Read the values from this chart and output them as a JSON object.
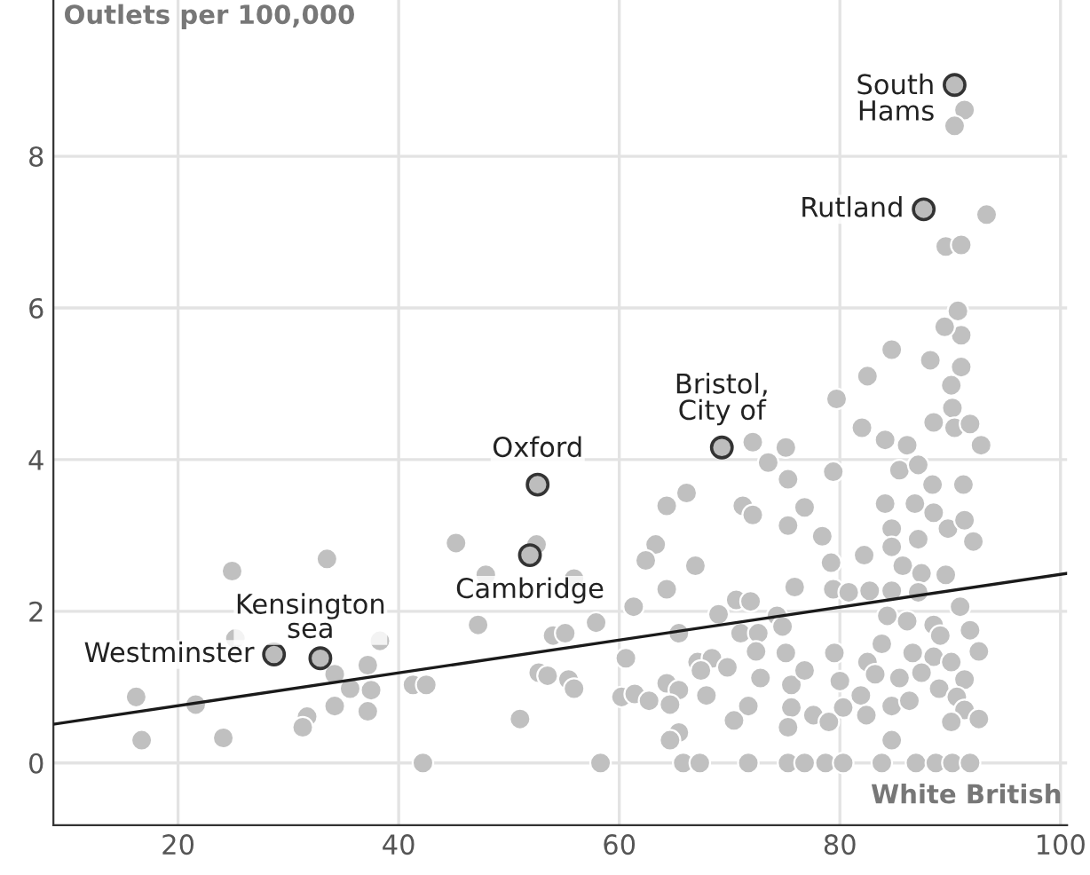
{
  "chart_data": {
    "type": "scatter",
    "xlabel": "White British",
    "ylabel": "Outlets per 100,000",
    "xlim": [
      8.7,
      100.6
    ],
    "ylim": [
      -0.82,
      10.06
    ],
    "xticks": [
      20,
      40,
      60,
      80,
      100
    ],
    "yticks": [
      0,
      2,
      4,
      6,
      8
    ],
    "grid": true,
    "marker": "circle",
    "series": [
      {
        "color": "#c0c0c0",
        "x": [
          16.2,
          16.7,
          21.6,
          24.1,
          24.9,
          25.2,
          33.5,
          31.7,
          31.3,
          34.2,
          34.2,
          35.6,
          37.2,
          37.5,
          37.2,
          38.3,
          41.3,
          42.5,
          42.2,
          45.2,
          47.9,
          47.2,
          51.0,
          52.5,
          54.0,
          52.7,
          53.5,
          72.1,
          75.1,
          73.5,
          75.3,
          79.7,
          66.1,
          64.3,
          71.2,
          72.1,
          76.8,
          75.3,
          63.3,
          62.4,
          66.9,
          64.3,
          75.9,
          78.4,
          79.2,
          79.4,
          55.9,
          57.9,
          61.3,
          65.4,
          69.0,
          70.6,
          71.9,
          74.3,
          71.0,
          72.6,
          74.8,
          72.4,
          75.1,
          60.6,
          67.1,
          68.4,
          69.8,
          67.4,
          72.8,
          75.6,
          76.8,
          64.3,
          65.4,
          67.9,
          60.2,
          61.4,
          62.7,
          64.6,
          71.7,
          75.6,
          77.6,
          70.4,
          75.3,
          65.4,
          64.6,
          58.3,
          65.8,
          67.3,
          71.7,
          75.3,
          76.8,
          55.4,
          55.9,
          55.1,
          91.0,
          84.7,
          88.2,
          91.0,
          82.5,
          90.1,
          90.2,
          82.0,
          88.5,
          90.4,
          91.8,
          84.1,
          86.1,
          92.8,
          79.4,
          85.4,
          87.1,
          88.4,
          91.2,
          84.1,
          86.8,
          88.5,
          89.8,
          91.3,
          92.1,
          84.7,
          82.2,
          84.7,
          87.1,
          85.7,
          87.4,
          89.6,
          82.7,
          84.7,
          80.8,
          87.1,
          90.9,
          84.3,
          86.1,
          88.5,
          91.8,
          83.8,
          86.6,
          89.1,
          92.6,
          79.5,
          82.5,
          85.4,
          88.5,
          90.1,
          80.0,
          83.2,
          87.4,
          91.3,
          81.9,
          89.0,
          90.6,
          80.3,
          84.7,
          86.3,
          91.3,
          90.1,
          92.6,
          82.4,
          79.0,
          84.7,
          78.7,
          80.3,
          83.8,
          86.9,
          88.7,
          90.2,
          91.8,
          91.3,
          90.4,
          93.3,
          89.6,
          91.0,
          90.7,
          89.5
        ],
        "values": [
          0.87,
          0.3,
          0.77,
          0.33,
          2.53,
          1.64,
          2.69,
          0.61,
          0.47,
          0.75,
          1.17,
          0.98,
          1.29,
          0.96,
          0.68,
          1.61,
          1.03,
          1.03,
          0,
          2.9,
          2.48,
          1.82,
          0.58,
          2.88,
          1.68,
          1.19,
          1.15,
          4.23,
          4.16,
          3.96,
          3.74,
          4.8,
          3.56,
          3.39,
          3.39,
          3.27,
          3.37,
          3.13,
          2.88,
          2.67,
          2.6,
          2.29,
          2.32,
          2.99,
          2.64,
          2.29,
          2.43,
          1.85,
          2.06,
          1.71,
          1.96,
          2.15,
          2.13,
          1.94,
          1.71,
          1.71,
          1.8,
          1.47,
          1.45,
          1.38,
          1.33,
          1.38,
          1.26,
          1.22,
          1.12,
          1.03,
          1.22,
          1.05,
          0.96,
          0.89,
          0.87,
          0.91,
          0.82,
          0.77,
          0.75,
          0.73,
          0.63,
          0.56,
          0.47,
          0.4,
          0.3,
          0,
          0,
          0,
          0,
          0,
          0,
          1.1,
          0.98,
          1.71,
          5.64,
          5.45,
          5.31,
          5.22,
          5.1,
          4.98,
          4.68,
          4.42,
          4.49,
          4.42,
          4.47,
          4.26,
          4.19,
          4.19,
          3.84,
          3.86,
          3.93,
          3.67,
          3.67,
          3.42,
          3.42,
          3.3,
          3.09,
          3.2,
          2.92,
          3.09,
          2.74,
          2.85,
          2.95,
          2.6,
          2.5,
          2.48,
          2.27,
          2.27,
          2.25,
          2.25,
          2.06,
          1.94,
          1.87,
          1.82,
          1.75,
          1.57,
          1.45,
          1.68,
          1.47,
          1.45,
          1.33,
          1.12,
          1.4,
          1.33,
          1.08,
          1.17,
          1.19,
          1.1,
          0.89,
          0.98,
          0.87,
          0.73,
          0.75,
          0.82,
          0.7,
          0.54,
          0.58,
          0.63,
          0.54,
          0.3,
          0,
          0,
          0,
          0,
          0,
          0,
          0,
          8.61,
          8.4,
          7.23,
          6.81,
          6.83,
          5.96,
          5.75
        ]
      },
      {
        "color": "#bdbdbd",
        "x": [
          28.7,
          32.9,
          51.9,
          52.6,
          69.3,
          87.6,
          90.4
        ],
        "values": [
          1.43,
          1.38,
          2.74,
          3.67,
          4.16,
          7.3,
          8.94
        ]
      },
      {
        "type": "line",
        "color": "#1a1a1a",
        "marker": "none",
        "x": [
          8.7,
          100.6
        ],
        "values": [
          0.51,
          2.5
        ]
      }
    ],
    "annotations": [
      {
        "text": "Westminster",
        "x": 28.7,
        "y": 1.43
      },
      {
        "text": "Kensington\nsea",
        "x": 32.9,
        "y": 1.38
      },
      {
        "text": "Cambridge",
        "x": 51.9,
        "y": 2.74
      },
      {
        "text": "Oxford",
        "x": 52.6,
        "y": 3.67
      },
      {
        "text": "Bristol,\nCity of",
        "x": 69.3,
        "y": 4.16
      },
      {
        "text": "Rutland",
        "x": 87.6,
        "y": 7.3
      },
      {
        "text": "South\nHams",
        "x": 90.4,
        "y": 8.94
      }
    ]
  }
}
